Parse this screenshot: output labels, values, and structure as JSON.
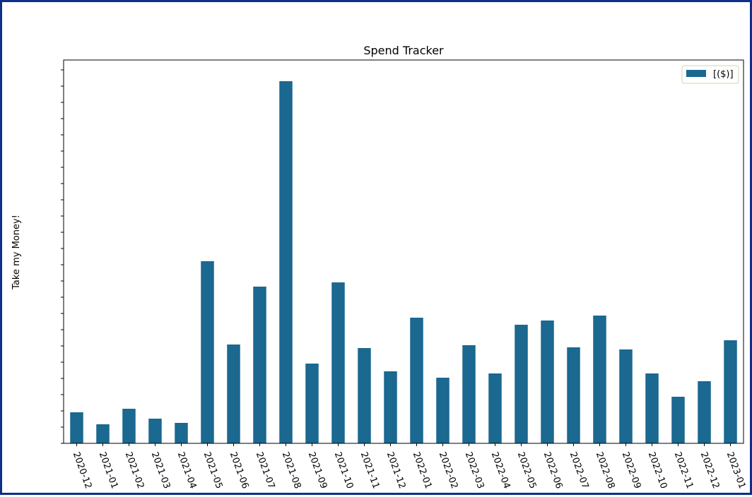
{
  "chart_data": {
    "type": "bar",
    "title": "Spend Tracker",
    "xlabel": "",
    "ylabel": "Take my Money!",
    "categories": [
      "2020-12",
      "2021-01",
      "2021-02",
      "2021-03",
      "2021-04",
      "2021-05",
      "2021-06",
      "2021-07",
      "2021-08",
      "2021-09",
      "2021-10",
      "2021-11",
      "2021-12",
      "2022-01",
      "2022-02",
      "2022-03",
      "2022-04",
      "2022-05",
      "2022-06",
      "2022-07",
      "2022-08",
      "2022-09",
      "2022-10",
      "2022-11",
      "2022-12",
      "2023-01"
    ],
    "series": [
      {
        "name": "[($)]",
        "values": [
          44,
          27,
          49,
          35,
          29,
          258,
          140,
          222,
          513,
          113,
          228,
          135,
          102,
          178,
          93,
          139,
          99,
          168,
          174,
          136,
          181,
          133,
          99,
          66,
          88,
          146
        ]
      }
    ],
    "ylim": [
      0,
      543
    ],
    "ytick_step": 23,
    "ytick_labels_shown": false,
    "grid": false,
    "legend": "top-right",
    "colors": {
      "bar": "#1b6890",
      "frame": "#0d2f8a",
      "legend_border": "#d3d3b0"
    }
  }
}
